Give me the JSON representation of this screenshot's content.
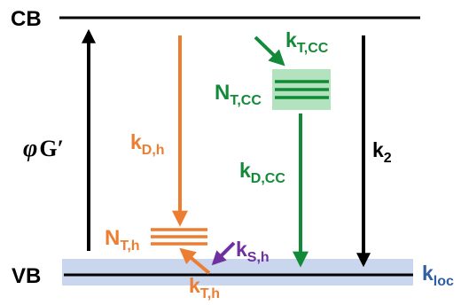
{
  "levels": {
    "cb_label": "CB",
    "vb_label": "VB"
  },
  "generation": {
    "symbol": "φ",
    "term": "G′"
  },
  "rates": {
    "k_D_h": {
      "main": "k",
      "sub": "D,h"
    },
    "k_T_CC": {
      "main": "k",
      "sub": "T,CC"
    },
    "k_D_CC": {
      "main": "k",
      "sub": "D,CC"
    },
    "k_2": {
      "main": "k",
      "sub": "2"
    },
    "k_S_h": {
      "main": "k",
      "sub": "S,h"
    },
    "k_T_h": {
      "main": "k",
      "sub": "T,h"
    },
    "k_loc": {
      "main": "k",
      "sub": "loc"
    }
  },
  "traps": {
    "N_T_CC": {
      "main": "N",
      "sub": "T,CC"
    },
    "N_T_h": {
      "main": "N",
      "sub": "T,h"
    }
  },
  "colors": {
    "black": "#000000",
    "orange": "#ED7D31",
    "green": "#138A37",
    "purple": "#7030A0",
    "blue_label": "#2E5FA3",
    "vb_band": "#C9D6EE",
    "trap_box": "#B3E3BE"
  }
}
